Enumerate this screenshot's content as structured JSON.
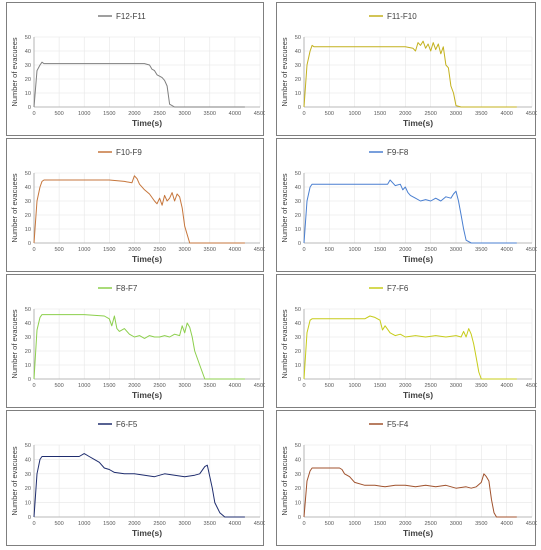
{
  "chart_data": [
    {
      "type": "line",
      "title": "F12-F11",
      "color": "#7f7f7f",
      "xlabel": "Time(s)",
      "ylabel": "Number of evacuees",
      "xlim": [
        0,
        4500
      ],
      "ylim": [
        0,
        50
      ],
      "xticks": [
        0,
        500,
        1000,
        1500,
        2000,
        2500,
        3000,
        3500,
        4000,
        4500
      ],
      "yticks": [
        0,
        10,
        20,
        30,
        40,
        50
      ],
      "x": [
        0,
        60,
        120,
        160,
        200,
        300,
        600,
        1000,
        1500,
        2000,
        2200,
        2300,
        2350,
        2400,
        2450,
        2500,
        2550,
        2600,
        2650,
        2700,
        2800,
        3000,
        3500,
        4000,
        4200
      ],
      "y": [
        0,
        26,
        30,
        32,
        31,
        31,
        31,
        31,
        31,
        31,
        31,
        30,
        27,
        26,
        23,
        22,
        21,
        19,
        15,
        2,
        0,
        0,
        0,
        0,
        0
      ]
    },
    {
      "type": "line",
      "title": "F11-F10",
      "color": "#c3b11e",
      "xlabel": "Time(s)",
      "ylabel": "Number of evacuees",
      "xlim": [
        0,
        4500
      ],
      "ylim": [
        0,
        50
      ],
      "xticks": [
        0,
        500,
        1000,
        1500,
        2000,
        2500,
        3000,
        3500,
        4000,
        4500
      ],
      "yticks": [
        0,
        10,
        20,
        30,
        40,
        50
      ],
      "x": [
        0,
        60,
        120,
        160,
        200,
        300,
        600,
        1000,
        1500,
        2000,
        2150,
        2200,
        2250,
        2300,
        2350,
        2400,
        2450,
        2500,
        2550,
        2600,
        2650,
        2700,
        2750,
        2800,
        2850,
        2900,
        2950,
        3000,
        3100,
        3500,
        4000,
        4200
      ],
      "y": [
        0,
        30,
        40,
        44,
        43,
        43,
        43,
        43,
        43,
        43,
        42,
        40,
        46,
        44,
        47,
        42,
        45,
        40,
        46,
        41,
        45,
        38,
        43,
        30,
        28,
        15,
        10,
        1,
        0,
        0,
        0,
        0
      ]
    },
    {
      "type": "line",
      "title": "F10-F9",
      "color": "#c6763c",
      "xlabel": "Time(s)",
      "ylabel": "Number of evacuees",
      "xlim": [
        0,
        4500
      ],
      "ylim": [
        0,
        50
      ],
      "xticks": [
        0,
        500,
        1000,
        1500,
        2000,
        2500,
        3000,
        3500,
        4000,
        4500
      ],
      "yticks": [
        0,
        10,
        20,
        30,
        40,
        50
      ],
      "x": [
        0,
        60,
        120,
        160,
        200,
        300,
        600,
        1000,
        1500,
        1800,
        1950,
        2000,
        2050,
        2100,
        2200,
        2300,
        2400,
        2450,
        2500,
        2550,
        2600,
        2650,
        2700,
        2750,
        2800,
        2850,
        2900,
        2950,
        3000,
        3100,
        3500,
        4000,
        4200
      ],
      "y": [
        0,
        30,
        40,
        44,
        45,
        45,
        45,
        45,
        45,
        44,
        43,
        48,
        46,
        42,
        38,
        35,
        30,
        28,
        32,
        27,
        34,
        30,
        32,
        36,
        30,
        35,
        33,
        25,
        12,
        0,
        0,
        0,
        0
      ]
    },
    {
      "type": "line",
      "title": "F9-F8",
      "color": "#4a7fd0",
      "xlabel": "Time(s)",
      "ylabel": "Number of evacuees",
      "xlim": [
        0,
        4500
      ],
      "ylim": [
        0,
        50
      ],
      "xticks": [
        0,
        500,
        1000,
        1500,
        2000,
        2500,
        3000,
        3500,
        4000,
        4500
      ],
      "yticks": [
        0,
        10,
        20,
        30,
        40,
        50
      ],
      "x": [
        0,
        60,
        120,
        160,
        200,
        300,
        600,
        1000,
        1500,
        1650,
        1700,
        1750,
        1800,
        1900,
        1950,
        2000,
        2050,
        2100,
        2200,
        2300,
        2400,
        2500,
        2600,
        2700,
        2800,
        2900,
        2950,
        3000,
        3050,
        3100,
        3150,
        3200,
        3300,
        3500,
        4000,
        4200
      ],
      "y": [
        0,
        30,
        40,
        42,
        42,
        42,
        42,
        42,
        42,
        42,
        45,
        43,
        41,
        42,
        38,
        40,
        36,
        34,
        32,
        30,
        31,
        30,
        32,
        30,
        33,
        32,
        35,
        37,
        30,
        20,
        10,
        2,
        0,
        0,
        0,
        0
      ]
    },
    {
      "type": "line",
      "title": "F8-F7",
      "color": "#8ccf4c",
      "xlabel": "Time(s)",
      "ylabel": "Number of evacuees",
      "xlim": [
        0,
        4500
      ],
      "ylim": [
        0,
        50
      ],
      "xticks": [
        0,
        500,
        1000,
        1500,
        2000,
        2500,
        3000,
        3500,
        4000,
        4500
      ],
      "yticks": [
        0,
        10,
        20,
        30,
        40,
        50
      ],
      "x": [
        0,
        60,
        120,
        160,
        200,
        300,
        600,
        1000,
        1400,
        1500,
        1550,
        1600,
        1650,
        1700,
        1800,
        1900,
        2000,
        2100,
        2200,
        2300,
        2400,
        2500,
        2600,
        2700,
        2800,
        2900,
        2950,
        3000,
        3050,
        3100,
        3150,
        3200,
        3300,
        3400,
        3500,
        4000,
        4200
      ],
      "y": [
        0,
        35,
        44,
        46,
        46,
        46,
        46,
        46,
        45,
        43,
        38,
        45,
        36,
        34,
        36,
        32,
        30,
        31,
        29,
        31,
        30,
        30,
        31,
        30,
        32,
        31,
        38,
        33,
        40,
        37,
        30,
        20,
        10,
        0,
        0,
        0,
        0
      ]
    },
    {
      "type": "line",
      "title": "F7-F6",
      "color": "#c7cc1a",
      "xlabel": "Time(s)",
      "ylabel": "Number of evacuees",
      "xlim": [
        0,
        4500
      ],
      "ylim": [
        0,
        50
      ],
      "xticks": [
        0,
        500,
        1000,
        1500,
        2000,
        2500,
        3000,
        3500,
        4000,
        4500
      ],
      "yticks": [
        0,
        10,
        20,
        30,
        40,
        50
      ],
      "x": [
        0,
        60,
        120,
        160,
        200,
        300,
        600,
        1000,
        1200,
        1300,
        1400,
        1500,
        1550,
        1600,
        1700,
        1800,
        1900,
        2000,
        2200,
        2400,
        2600,
        2800,
        3000,
        3100,
        3150,
        3200,
        3250,
        3300,
        3350,
        3400,
        3450,
        3500,
        3600,
        4000,
        4200
      ],
      "y": [
        0,
        33,
        42,
        43,
        43,
        43,
        43,
        43,
        43,
        45,
        44,
        42,
        35,
        38,
        33,
        31,
        32,
        30,
        31,
        30,
        31,
        30,
        31,
        30,
        34,
        30,
        36,
        32,
        25,
        15,
        5,
        0,
        0,
        0,
        0
      ]
    },
    {
      "type": "line",
      "title": "F6-F5",
      "color": "#1f2d6e",
      "xlabel": "Time(s)",
      "ylabel": "Number of evacuees",
      "xlim": [
        0,
        4500
      ],
      "ylim": [
        0,
        50
      ],
      "xticks": [
        0,
        500,
        1000,
        1500,
        2000,
        2500,
        3000,
        3500,
        4000,
        4500
      ],
      "yticks": [
        0,
        10,
        20,
        30,
        40,
        50
      ],
      "x": [
        0,
        60,
        120,
        160,
        200,
        300,
        600,
        900,
        1000,
        1100,
        1200,
        1300,
        1400,
        1500,
        1600,
        1800,
        2000,
        2200,
        2400,
        2600,
        2800,
        3000,
        3200,
        3300,
        3400,
        3450,
        3500,
        3550,
        3600,
        3700,
        3800,
        4000,
        4200
      ],
      "y": [
        0,
        30,
        40,
        42,
        42,
        42,
        42,
        42,
        44,
        42,
        40,
        38,
        34,
        33,
        31,
        30,
        30,
        29,
        28,
        30,
        29,
        28,
        29,
        30,
        35,
        36,
        28,
        20,
        10,
        3,
        0,
        0,
        0
      ]
    },
    {
      "type": "line",
      "title": "F5-F4",
      "color": "#a0522d",
      "xlabel": "Time(s)",
      "ylabel": "Number of evacuees",
      "xlim": [
        0,
        4500
      ],
      "ylim": [
        0,
        50
      ],
      "xticks": [
        0,
        500,
        1000,
        1500,
        2000,
        2500,
        3000,
        3500,
        4000,
        4500
      ],
      "yticks": [
        0,
        10,
        20,
        30,
        40,
        50
      ],
      "x": [
        0,
        60,
        120,
        160,
        200,
        300,
        500,
        700,
        750,
        800,
        900,
        1000,
        1200,
        1400,
        1600,
        1800,
        2000,
        2200,
        2400,
        2600,
        2800,
        3000,
        3200,
        3300,
        3400,
        3500,
        3550,
        3600,
        3650,
        3700,
        3750,
        3800,
        3900,
        4000,
        4200
      ],
      "y": [
        0,
        25,
        32,
        34,
        34,
        34,
        34,
        34,
        33,
        30,
        28,
        24,
        22,
        22,
        21,
        22,
        22,
        21,
        22,
        21,
        22,
        20,
        21,
        20,
        21,
        24,
        30,
        28,
        25,
        12,
        3,
        0,
        0,
        0,
        0
      ]
    }
  ]
}
